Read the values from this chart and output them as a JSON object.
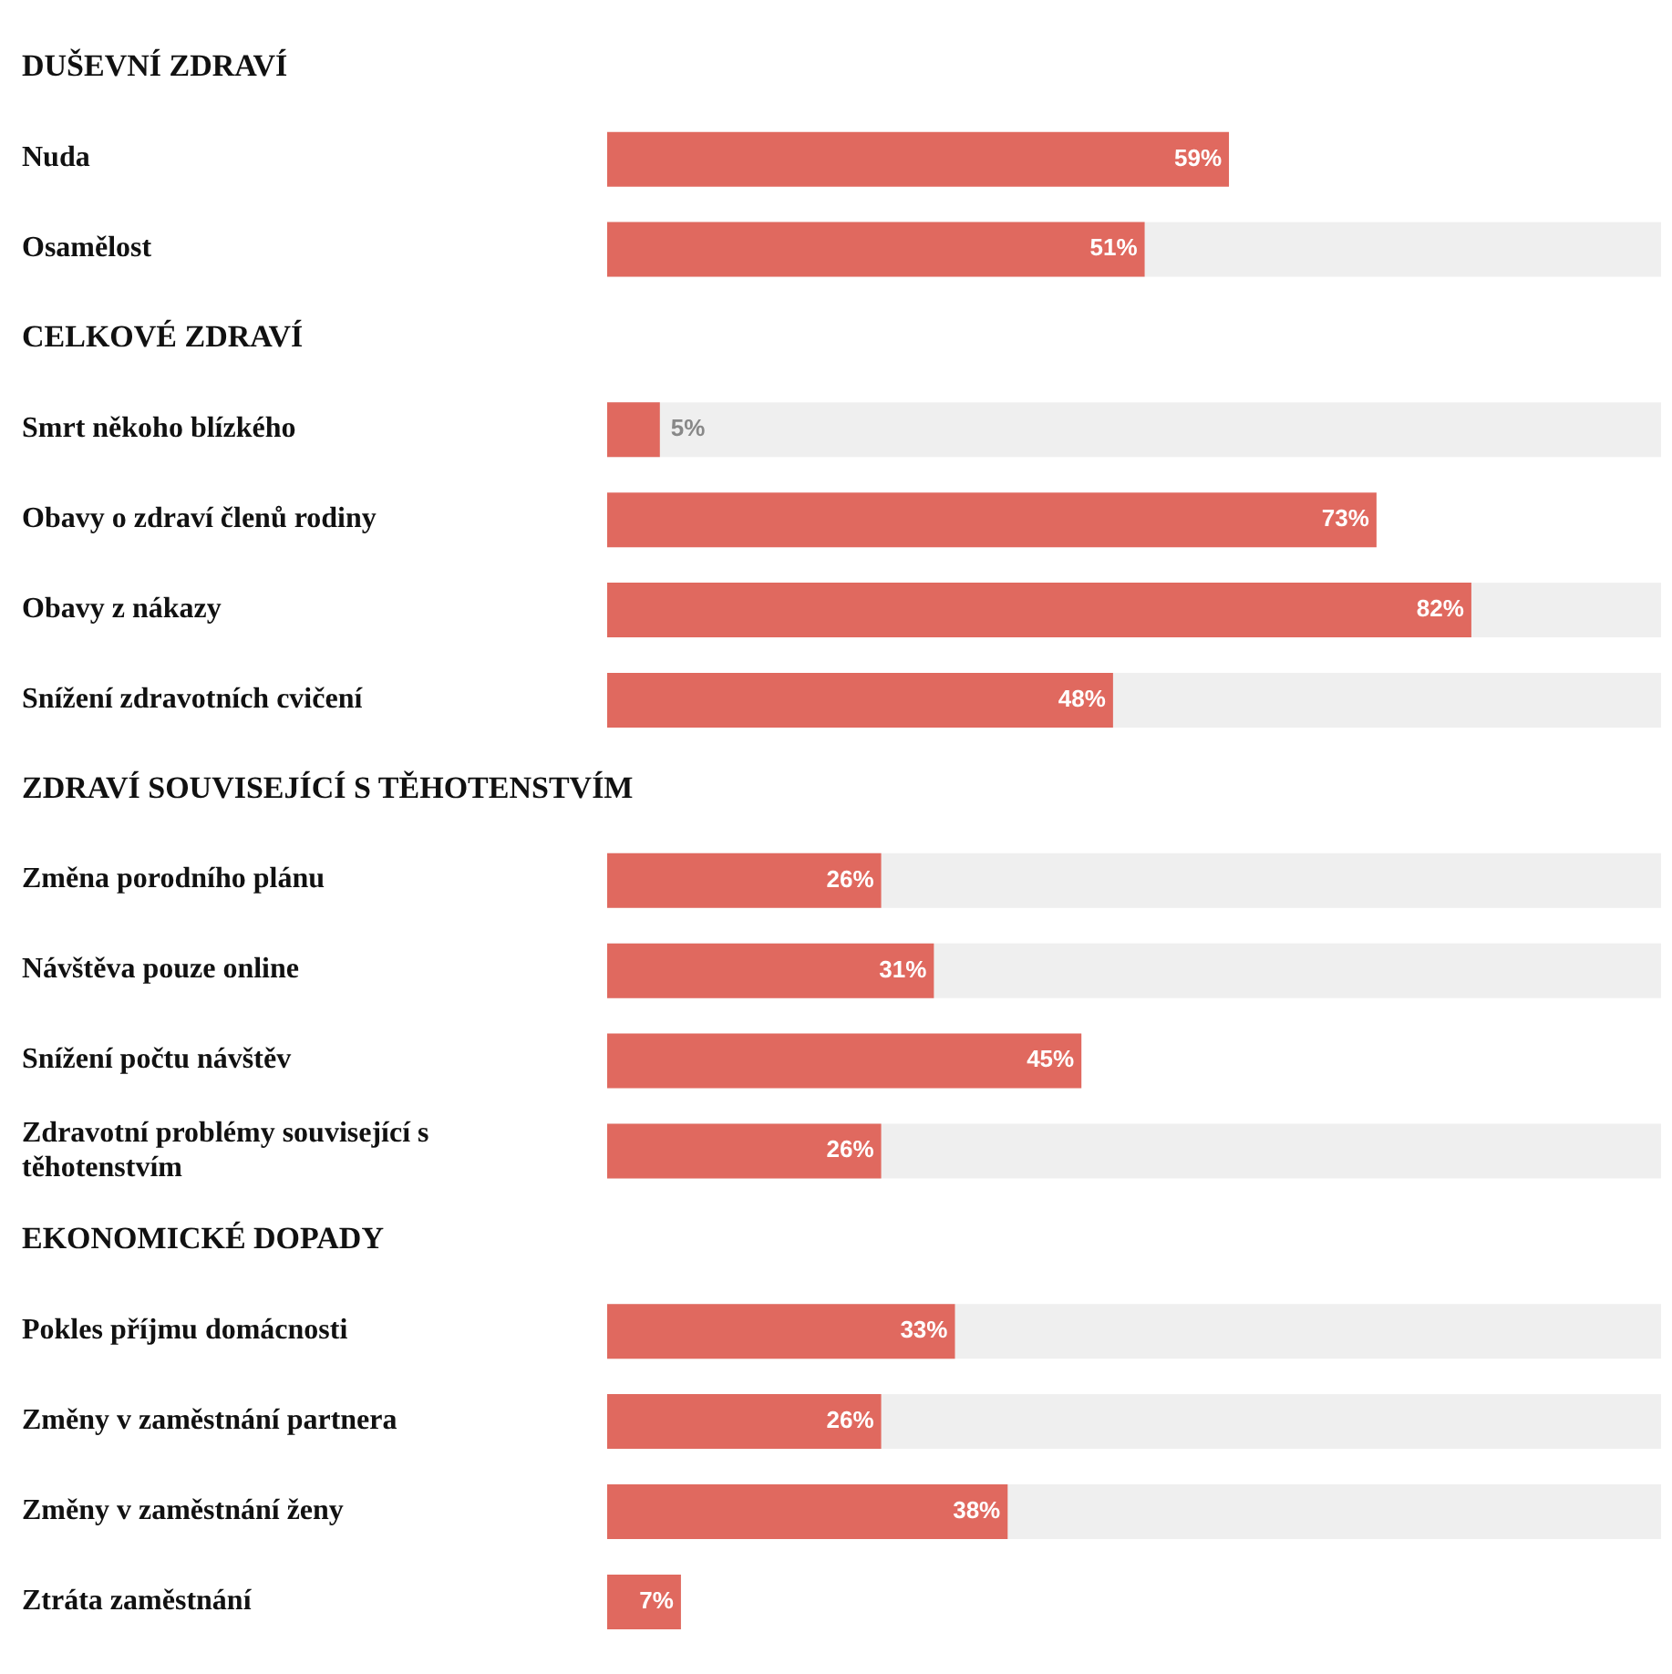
{
  "chart_data": {
    "type": "bar",
    "orientation": "horizontal",
    "categories": [
      "DUŠEVNÍ ZDRAVÍ",
      "Nuda",
      "Osamělost",
      "CELKOVÉ ZDRAVÍ",
      "Smrt někoho blízkého",
      "Obavy o zdraví členů rodiny",
      "Obavy z nákazy",
      "Snížení zdravotních cvičení",
      "ZDRAVÍ SOUVISEJÍCÍ S TĚHOTENSTVÍM",
      "Změna porodního plánu",
      "Návštěva pouze online",
      "Snížení počtu návštěv",
      "Zdravotní problémy související s těhotenstvím",
      "EKONOMICKÉ DOPADY",
      "Pokles příjmu domácnosti",
      "Změny v zaměstnání partnera",
      "Změny v zaměstnání ženy",
      "Ztráta zaměstnání"
    ],
    "values": [
      null,
      59,
      51,
      null,
      5,
      73,
      82,
      48,
      null,
      26,
      31,
      45,
      26,
      null,
      33,
      26,
      38,
      7
    ],
    "value_labels": [
      null,
      "59%",
      "51%",
      null,
      "5%",
      "73%",
      "82%",
      "48%",
      null,
      "26%",
      "31%",
      "45%",
      "26%",
      null,
      "33%",
      "26%",
      "38%",
      "7%"
    ],
    "color": "#e0695f",
    "xlim": [
      0,
      100
    ]
  }
}
